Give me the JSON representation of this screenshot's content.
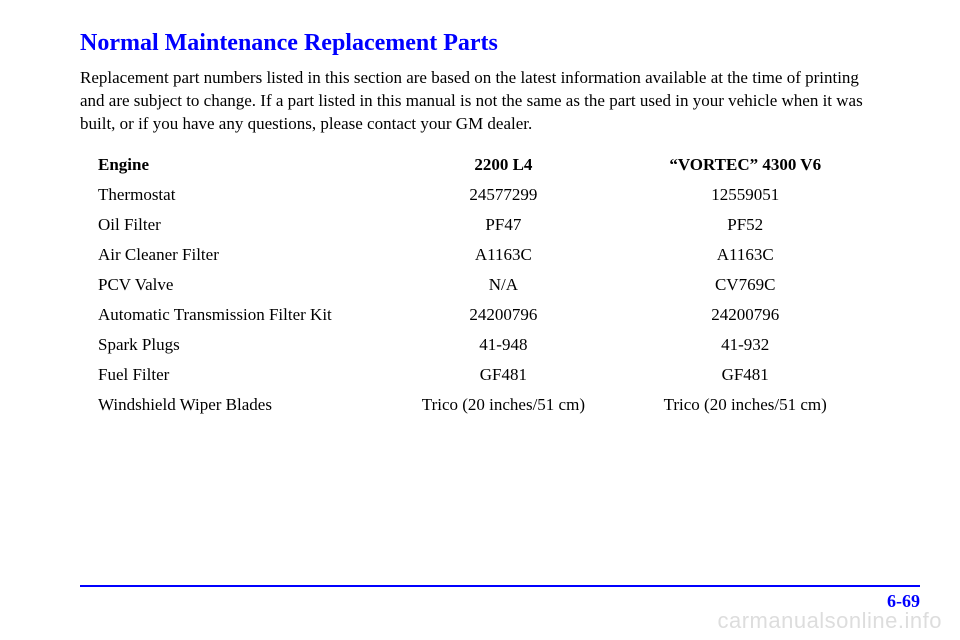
{
  "heading": "Normal Maintenance Replacement Parts",
  "intro": "Replacement part numbers listed in this section are based on the latest information available at the time of printing and are subject to change. If a part listed in this manual is not the same as the part used in your vehicle when it was built, or if you have any questions, please contact your GM dealer.",
  "table": {
    "columns": [
      "Engine",
      "2200 L4",
      "“VORTEC” 4300 V6"
    ],
    "rows": [
      [
        "Thermostat",
        "24577299",
        "12559051"
      ],
      [
        "Oil Filter",
        "PF47",
        "PF52"
      ],
      [
        "Air Cleaner Filter",
        "A1163C",
        "A1163C"
      ],
      [
        "PCV Valve",
        "N/A",
        "CV769C"
      ],
      [
        "Automatic Transmission Filter Kit",
        "24200796",
        "24200796"
      ],
      [
        "Spark Plugs",
        "41-948",
        "41-932"
      ],
      [
        "Fuel Filter",
        "GF481",
        "GF481"
      ],
      [
        "Windshield Wiper Blades",
        "Trico (20 inches/51 cm)",
        "Trico (20 inches/51 cm)"
      ]
    ],
    "header_fontweight": "bold",
    "cell_fontsize": 17,
    "text_color": "#000000"
  },
  "footer": {
    "line_color": "#0000ff",
    "page_number": "6-69",
    "page_number_color": "#0000ff"
  },
  "watermark": "carmanualsonline.info",
  "styles": {
    "heading_color": "#0000ff",
    "heading_fontsize": 24,
    "body_fontsize": 17,
    "font_family": "Times New Roman",
    "background_color": "#ffffff",
    "watermark_color": "#dddddd"
  }
}
